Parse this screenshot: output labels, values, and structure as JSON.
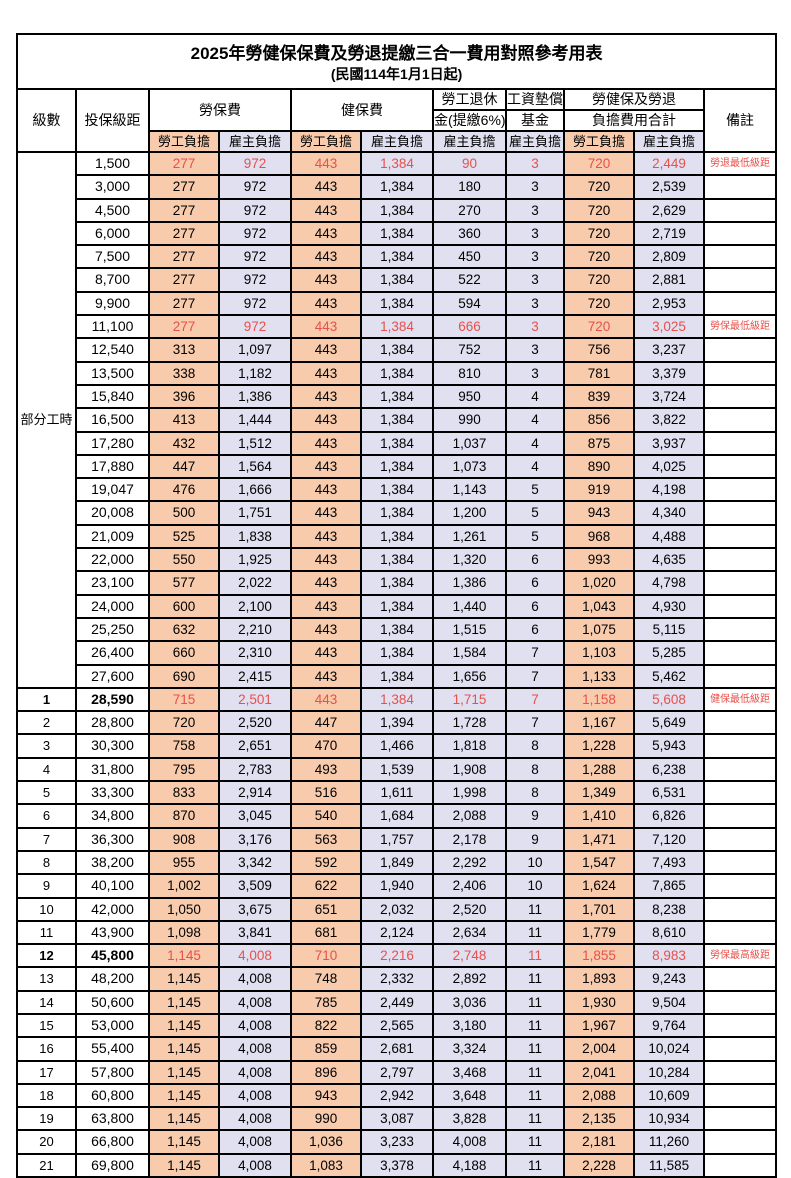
{
  "colors": {
    "employee_col_bg": "#F8CBAD",
    "employer_col_bg": "#E0E0F1",
    "highlight_text": "#E8504A",
    "grid_border": "#000000"
  },
  "table": {
    "title": "2025年勞健保保費及勞退提繳三合一費用對照參考用表",
    "subtitle": "(民國114年1月1日起)",
    "header": {
      "level": "級數",
      "bracket": "投保級距",
      "labor_insurance": "勞保費",
      "health_insurance": "健保費",
      "pension_line1": "勞工退休",
      "pension_line2": "金(提繳6%)",
      "wage_fund_line1": "工資墊償",
      "wage_fund_line2": "基金",
      "total_line1": "勞健保及勞退",
      "total_line2": "負擔費用合計",
      "remark": "備註",
      "employee_share": "勞工負擔",
      "employer_share": "雇主負擔"
    },
    "part_time_label": "部分工時",
    "row_format": [
      "level",
      "bracket",
      "labor_emp",
      "labor_er",
      "health_emp",
      "health_er",
      "pension_er",
      "wage_fund_er",
      "total_emp",
      "total_er",
      "remark",
      "highlight",
      "emphasis"
    ],
    "rows": [
      [
        "",
        "1,500",
        "277",
        "972",
        "443",
        "1,384",
        "90",
        "3",
        "720",
        "2,449",
        "勞退最低級距",
        true,
        false
      ],
      [
        "",
        "3,000",
        "277",
        "972",
        "443",
        "1,384",
        "180",
        "3",
        "720",
        "2,539",
        "",
        false,
        false
      ],
      [
        "",
        "4,500",
        "277",
        "972",
        "443",
        "1,384",
        "270",
        "3",
        "720",
        "2,629",
        "",
        false,
        false
      ],
      [
        "",
        "6,000",
        "277",
        "972",
        "443",
        "1,384",
        "360",
        "3",
        "720",
        "2,719",
        "",
        false,
        false
      ],
      [
        "",
        "7,500",
        "277",
        "972",
        "443",
        "1,384",
        "450",
        "3",
        "720",
        "2,809",
        "",
        false,
        false
      ],
      [
        "",
        "8,700",
        "277",
        "972",
        "443",
        "1,384",
        "522",
        "3",
        "720",
        "2,881",
        "",
        false,
        false
      ],
      [
        "",
        "9,900",
        "277",
        "972",
        "443",
        "1,384",
        "594",
        "3",
        "720",
        "2,953",
        "",
        false,
        false
      ],
      [
        "",
        "11,100",
        "277",
        "972",
        "443",
        "1,384",
        "666",
        "3",
        "720",
        "3,025",
        "勞保最低級距",
        true,
        false
      ],
      [
        "",
        "12,540",
        "313",
        "1,097",
        "443",
        "1,384",
        "752",
        "3",
        "756",
        "3,237",
        "",
        false,
        false
      ],
      [
        "",
        "13,500",
        "338",
        "1,182",
        "443",
        "1,384",
        "810",
        "3",
        "781",
        "3,379",
        "",
        false,
        false
      ],
      [
        "",
        "15,840",
        "396",
        "1,386",
        "443",
        "1,384",
        "950",
        "4",
        "839",
        "3,724",
        "",
        false,
        false
      ],
      [
        "",
        "16,500",
        "413",
        "1,444",
        "443",
        "1,384",
        "990",
        "4",
        "856",
        "3,822",
        "",
        false,
        false
      ],
      [
        "",
        "17,280",
        "432",
        "1,512",
        "443",
        "1,384",
        "1,037",
        "4",
        "875",
        "3,937",
        "",
        false,
        false
      ],
      [
        "",
        "17,880",
        "447",
        "1,564",
        "443",
        "1,384",
        "1,073",
        "4",
        "890",
        "4,025",
        "",
        false,
        false
      ],
      [
        "",
        "19,047",
        "476",
        "1,666",
        "443",
        "1,384",
        "1,143",
        "5",
        "919",
        "4,198",
        "",
        false,
        false
      ],
      [
        "",
        "20,008",
        "500",
        "1,751",
        "443",
        "1,384",
        "1,200",
        "5",
        "943",
        "4,340",
        "",
        false,
        false
      ],
      [
        "",
        "21,009",
        "525",
        "1,838",
        "443",
        "1,384",
        "1,261",
        "5",
        "968",
        "4,488",
        "",
        false,
        false
      ],
      [
        "",
        "22,000",
        "550",
        "1,925",
        "443",
        "1,384",
        "1,320",
        "6",
        "993",
        "4,635",
        "",
        false,
        false
      ],
      [
        "",
        "23,100",
        "577",
        "2,022",
        "443",
        "1,384",
        "1,386",
        "6",
        "1,020",
        "4,798",
        "",
        false,
        false
      ],
      [
        "",
        "24,000",
        "600",
        "2,100",
        "443",
        "1,384",
        "1,440",
        "6",
        "1,043",
        "4,930",
        "",
        false,
        false
      ],
      [
        "",
        "25,250",
        "632",
        "2,210",
        "443",
        "1,384",
        "1,515",
        "6",
        "1,075",
        "5,115",
        "",
        false,
        false
      ],
      [
        "",
        "26,400",
        "660",
        "2,310",
        "443",
        "1,384",
        "1,584",
        "7",
        "1,103",
        "5,285",
        "",
        false,
        false
      ],
      [
        "",
        "27,600",
        "690",
        "2,415",
        "443",
        "1,384",
        "1,656",
        "7",
        "1,133",
        "5,462",
        "",
        false,
        false
      ],
      [
        "1",
        "28,590",
        "715",
        "2,501",
        "443",
        "1,384",
        "1,715",
        "7",
        "1,158",
        "5,608",
        "健保最低級距",
        true,
        true
      ],
      [
        "2",
        "28,800",
        "720",
        "2,520",
        "447",
        "1,394",
        "1,728",
        "7",
        "1,167",
        "5,649",
        "",
        false,
        false
      ],
      [
        "3",
        "30,300",
        "758",
        "2,651",
        "470",
        "1,466",
        "1,818",
        "8",
        "1,228",
        "5,943",
        "",
        false,
        false
      ],
      [
        "4",
        "31,800",
        "795",
        "2,783",
        "493",
        "1,539",
        "1,908",
        "8",
        "1,288",
        "6,238",
        "",
        false,
        false
      ],
      [
        "5",
        "33,300",
        "833",
        "2,914",
        "516",
        "1,611",
        "1,998",
        "8",
        "1,349",
        "6,531",
        "",
        false,
        false
      ],
      [
        "6",
        "34,800",
        "870",
        "3,045",
        "540",
        "1,684",
        "2,088",
        "9",
        "1,410",
        "6,826",
        "",
        false,
        false
      ],
      [
        "7",
        "36,300",
        "908",
        "3,176",
        "563",
        "1,757",
        "2,178",
        "9",
        "1,471",
        "7,120",
        "",
        false,
        false
      ],
      [
        "8",
        "38,200",
        "955",
        "3,342",
        "592",
        "1,849",
        "2,292",
        "10",
        "1,547",
        "7,493",
        "",
        false,
        false
      ],
      [
        "9",
        "40,100",
        "1,002",
        "3,509",
        "622",
        "1,940",
        "2,406",
        "10",
        "1,624",
        "7,865",
        "",
        false,
        false
      ],
      [
        "10",
        "42,000",
        "1,050",
        "3,675",
        "651",
        "2,032",
        "2,520",
        "11",
        "1,701",
        "8,238",
        "",
        false,
        false
      ],
      [
        "11",
        "43,900",
        "1,098",
        "3,841",
        "681",
        "2,124",
        "2,634",
        "11",
        "1,779",
        "8,610",
        "",
        false,
        false
      ],
      [
        "12",
        "45,800",
        "1,145",
        "4,008",
        "710",
        "2,216",
        "2,748",
        "11",
        "1,855",
        "8,983",
        "勞保最高級距",
        true,
        true
      ],
      [
        "13",
        "48,200",
        "1,145",
        "4,008",
        "748",
        "2,332",
        "2,892",
        "11",
        "1,893",
        "9,243",
        "",
        false,
        false
      ],
      [
        "14",
        "50,600",
        "1,145",
        "4,008",
        "785",
        "2,449",
        "3,036",
        "11",
        "1,930",
        "9,504",
        "",
        false,
        false
      ],
      [
        "15",
        "53,000",
        "1,145",
        "4,008",
        "822",
        "2,565",
        "3,180",
        "11",
        "1,967",
        "9,764",
        "",
        false,
        false
      ],
      [
        "16",
        "55,400",
        "1,145",
        "4,008",
        "859",
        "2,681",
        "3,324",
        "11",
        "2,004",
        "10,024",
        "",
        false,
        false
      ],
      [
        "17",
        "57,800",
        "1,145",
        "4,008",
        "896",
        "2,797",
        "3,468",
        "11",
        "2,041",
        "10,284",
        "",
        false,
        false
      ],
      [
        "18",
        "60,800",
        "1,145",
        "4,008",
        "943",
        "2,942",
        "3,648",
        "11",
        "2,088",
        "10,609",
        "",
        false,
        false
      ],
      [
        "19",
        "63,800",
        "1,145",
        "4,008",
        "990",
        "3,087",
        "3,828",
        "11",
        "2,135",
        "10,934",
        "",
        false,
        false
      ],
      [
        "20",
        "66,800",
        "1,145",
        "4,008",
        "1,036",
        "3,233",
        "4,008",
        "11",
        "2,181",
        "11,260",
        "",
        false,
        false
      ],
      [
        "21",
        "69,800",
        "1,145",
        "4,008",
        "1,083",
        "3,378",
        "4,188",
        "11",
        "2,228",
        "11,585",
        "",
        false,
        false
      ]
    ]
  }
}
